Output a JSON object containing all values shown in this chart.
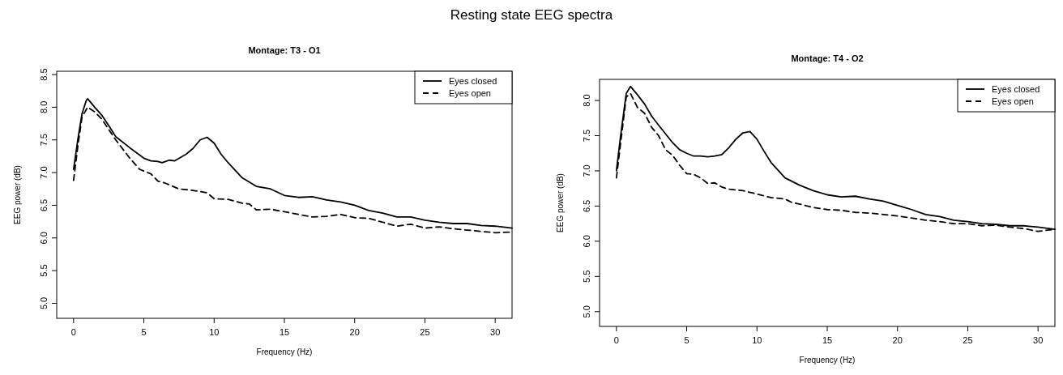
{
  "chart_data": [
    {
      "type": "line",
      "title": "Montage: T3 - O1",
      "xlabel": "Frequency (Hz)",
      "ylabel": "EEG power (dB)",
      "annotations": [
        "Resting state EEG spectra"
      ],
      "xlim": [
        -1.2,
        31.2
      ],
      "xticks": [
        0,
        5,
        10,
        15,
        20,
        25,
        30
      ],
      "ylim": [
        4.77,
        8.55
      ],
      "yticks": [
        {
          "value": 5,
          "label": "5.0"
        },
        5.5,
        {
          "value": 6,
          "label": "6.0"
        },
        6.5,
        {
          "value": 7,
          "label": "7.0"
        },
        7.5,
        {
          "value": 8,
          "label": "8.0"
        },
        8.5
      ],
      "legend": "top right",
      "grid": false,
      "series": [
        {
          "name": "Eyes closed",
          "color": "#000000",
          "line_style": "solid",
          "x": [
            0,
            0.3,
            0.6,
            0.9,
            1,
            1.5,
            2,
            2.5,
            3,
            4,
            5,
            5.5,
            6,
            6.3,
            6.8,
            7.2,
            8,
            8.5,
            9,
            9.5,
            10,
            10.5,
            11,
            12,
            13,
            14,
            15,
            16,
            17,
            18,
            19,
            20,
            21,
            22,
            23,
            24,
            25,
            26,
            27,
            28,
            29,
            30,
            31.2
          ],
          "values": [
            7.05,
            7.5,
            7.9,
            8.1,
            8.13,
            8.0,
            7.88,
            7.72,
            7.55,
            7.38,
            7.22,
            7.18,
            7.17,
            7.15,
            7.19,
            7.18,
            7.28,
            7.37,
            7.5,
            7.54,
            7.45,
            7.28,
            7.15,
            6.92,
            6.79,
            6.75,
            6.65,
            6.62,
            6.63,
            6.58,
            6.55,
            6.5,
            6.42,
            6.38,
            6.32,
            6.32,
            6.27,
            6.24,
            6.22,
            6.22,
            6.19,
            6.18,
            6.15
          ]
        },
        {
          "name": "Eyes open",
          "color": "#000000",
          "line_style": "dashed",
          "x": [
            0,
            0.3,
            0.6,
            1,
            1.5,
            2,
            3,
            4,
            4.7,
            5.5,
            6,
            6.5,
            7.5,
            8,
            9,
            9.5,
            10,
            11,
            12,
            12.5,
            13,
            14,
            15,
            16,
            17,
            18,
            19,
            20,
            21,
            22,
            23,
            24,
            25,
            26,
            27,
            28,
            29,
            30,
            31.2
          ],
          "values": [
            6.88,
            7.4,
            7.85,
            8.0,
            7.93,
            7.82,
            7.5,
            7.22,
            7.05,
            6.98,
            6.87,
            6.84,
            6.75,
            6.74,
            6.71,
            6.69,
            6.6,
            6.59,
            6.53,
            6.52,
            6.43,
            6.44,
            6.4,
            6.36,
            6.32,
            6.33,
            6.36,
            6.31,
            6.3,
            6.24,
            6.18,
            6.21,
            6.15,
            6.17,
            6.14,
            6.12,
            6.1,
            6.08,
            6.09
          ]
        }
      ]
    },
    {
      "type": "line",
      "title": "Montage: T4 - O2",
      "xlabel": "Frequency (Hz)",
      "ylabel": "EEG power (dB)",
      "xlim": [
        -1.2,
        31.2
      ],
      "xticks": [
        0,
        5,
        10,
        15,
        20,
        25,
        30
      ],
      "ylim": [
        4.79,
        8.3
      ],
      "yticks": [
        {
          "value": 5,
          "label": "5.0"
        },
        5.5,
        {
          "value": 6,
          "label": "6.0"
        },
        6.5,
        {
          "value": 7,
          "label": "7.0"
        },
        7.5,
        {
          "value": 8,
          "label": "8.0"
        }
      ],
      "legend": "top right",
      "grid": false,
      "series": [
        {
          "name": "Eyes closed",
          "color": "#000000",
          "line_style": "solid",
          "x": [
            0,
            0.3,
            0.7,
            1,
            1.5,
            2,
            2.5,
            3,
            4,
            4.5,
            5,
            5.5,
            6,
            6.5,
            7,
            7.5,
            8,
            8.5,
            9,
            9.5,
            10,
            10.5,
            11,
            12,
            13,
            14,
            15,
            16,
            17,
            18,
            19,
            20,
            21,
            22,
            23,
            24,
            25,
            26,
            27,
            28,
            29,
            30,
            31.2
          ],
          "values": [
            7.0,
            7.5,
            8.1,
            8.2,
            8.08,
            7.95,
            7.78,
            7.65,
            7.4,
            7.3,
            7.25,
            7.21,
            7.21,
            7.2,
            7.21,
            7.23,
            7.33,
            7.45,
            7.54,
            7.56,
            7.45,
            7.28,
            7.12,
            6.9,
            6.8,
            6.72,
            6.66,
            6.63,
            6.64,
            6.6,
            6.57,
            6.51,
            6.45,
            6.38,
            6.35,
            6.3,
            6.28,
            6.25,
            6.24,
            6.22,
            6.22,
            6.2,
            6.17
          ]
        },
        {
          "name": "Eyes open",
          "color": "#000000",
          "line_style": "dashed",
          "x": [
            0,
            0.3,
            0.7,
            1,
            1.5,
            2,
            2.5,
            3,
            3.5,
            4,
            4.5,
            5,
            5.5,
            6,
            6.5,
            7,
            7.5,
            8,
            9,
            10,
            11,
            12,
            12.5,
            13,
            14,
            15,
            16,
            17,
            18,
            19,
            20,
            21,
            22,
            23,
            24,
            25,
            26,
            27,
            28,
            29,
            30,
            31.2
          ],
          "values": [
            6.9,
            7.4,
            8.05,
            8.1,
            7.9,
            7.82,
            7.62,
            7.5,
            7.3,
            7.22,
            7.08,
            6.96,
            6.95,
            6.9,
            6.82,
            6.83,
            6.77,
            6.74,
            6.72,
            6.67,
            6.62,
            6.6,
            6.55,
            6.53,
            6.48,
            6.45,
            6.44,
            6.41,
            6.4,
            6.38,
            6.36,
            6.33,
            6.3,
            6.28,
            6.25,
            6.25,
            6.22,
            6.23,
            6.2,
            6.18,
            6.14,
            6.17
          ]
        }
      ]
    }
  ]
}
